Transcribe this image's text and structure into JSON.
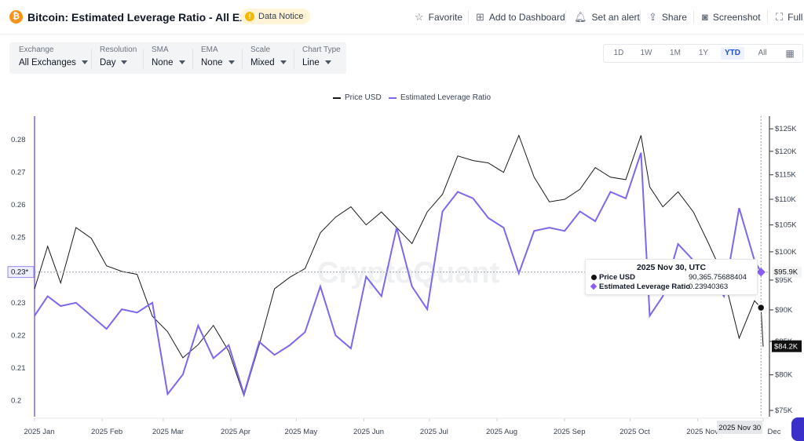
{
  "header": {
    "title": "Bitcoin: Estimated Leverage Ratio - All Exchanges",
    "coin_symbol": "₿",
    "notice_label": "Data Notice",
    "actions": {
      "favorite": "Favorite",
      "dashboard": "Add to Dashboard",
      "alert": "Set an alert",
      "share": "Share",
      "screenshot": "Screenshot",
      "full": "Full"
    }
  },
  "controls": {
    "exchange": {
      "label": "Exchange",
      "value": "All Exchanges"
    },
    "resolution": {
      "label": "Resolution",
      "value": "Day"
    },
    "sma": {
      "label": "SMA",
      "value": "None"
    },
    "ema": {
      "label": "EMA",
      "value": "None"
    },
    "scale": {
      "label": "Scale",
      "value": "Mixed"
    },
    "chart_type": {
      "label": "Chart Type",
      "value": "Line"
    }
  },
  "ranges": [
    "1D",
    "1W",
    "1M",
    "1Y",
    "YTD",
    "All"
  ],
  "active_range": "YTD",
  "legend": {
    "price": "Price USD",
    "ratio": "Estimated Leverage Ratio"
  },
  "tooltip": {
    "date": "2025 Nov 30, UTC",
    "price_label": "Price USD",
    "price_value": "90,365.75688404",
    "ratio_label": "Estimated Leverage Ratio",
    "ratio_value": "0.23940363"
  },
  "crosshair": {
    "left_label": "0.23*",
    "right_label": "$95.9K"
  },
  "last_price_label": "$84.2K",
  "crosshair_date_label": "2025 Nov 30",
  "watermark": "CryptoQuant",
  "colors": {
    "price": "#1a1a1a",
    "ratio": "#7b68ee",
    "accent": "#1d4ed8"
  },
  "chart_data": {
    "type": "line",
    "title": "Bitcoin: Estimated Leverage Ratio - All Exchanges",
    "x_labels": [
      "2025 Jan",
      "2025 Feb",
      "2025 Mar",
      "2025 Apr",
      "2025 May",
      "2025 Jun",
      "2025 Jul",
      "2025 Aug",
      "2025 Sep",
      "2025 Oct",
      "2025 Nov",
      "Dec"
    ],
    "y_left": {
      "ticks": [
        "0.28",
        "0.27",
        "0.26",
        "0.25",
        "0.24",
        "0.23",
        "0.22",
        "0.21",
        "0.2"
      ],
      "range": [
        0.197,
        0.286
      ]
    },
    "y_right": {
      "ticks": [
        "$125K",
        "$120K",
        "$115K",
        "$110K",
        "$105K",
        "$100K",
        "$95K",
        "$90K",
        "$85K",
        "$80K",
        "$75K"
      ],
      "scale": "log",
      "range": [
        75000,
        127000
      ]
    },
    "legend_position": "top-center",
    "grid": false,
    "series": [
      {
        "name": "Price USD",
        "axis": "right",
        "x": [
          "2025-01-01",
          "2025-01-07",
          "2025-01-13",
          "2025-01-20",
          "2025-01-27",
          "2025-02-03",
          "2025-02-10",
          "2025-02-17",
          "2025-02-24",
          "2025-03-03",
          "2025-03-10",
          "2025-03-17",
          "2025-03-24",
          "2025-03-31",
          "2025-04-07",
          "2025-04-14",
          "2025-04-21",
          "2025-04-28",
          "2025-05-05",
          "2025-05-12",
          "2025-05-19",
          "2025-05-26",
          "2025-06-02",
          "2025-06-09",
          "2025-06-16",
          "2025-06-23",
          "2025-06-30",
          "2025-07-07",
          "2025-07-14",
          "2025-07-21",
          "2025-07-28",
          "2025-08-04",
          "2025-08-11",
          "2025-08-18",
          "2025-08-25",
          "2025-09-01",
          "2025-09-08",
          "2025-09-15",
          "2025-09-22",
          "2025-09-29",
          "2025-10-06",
          "2025-10-10",
          "2025-10-16",
          "2025-10-23",
          "2025-10-30",
          "2025-11-06",
          "2025-11-13",
          "2025-11-20",
          "2025-11-27",
          "2025-11-30",
          "2025-12-01"
        ],
        "values": [
          93500,
          101000,
          94500,
          104500,
          102500,
          97500,
          96500,
          96000,
          89000,
          86500,
          82500,
          84500,
          87500,
          83500,
          77000,
          84500,
          93500,
          95500,
          97000,
          103500,
          106500,
          108500,
          105000,
          107500,
          104500,
          101500,
          107500,
          111000,
          119000,
          118000,
          117500,
          115500,
          123500,
          114500,
          109500,
          110000,
          112000,
          116500,
          114500,
          114000,
          123500,
          112500,
          108500,
          111500,
          107500,
          101500,
          95500,
          85500,
          91500,
          90365,
          84200
        ]
      },
      {
        "name": "Estimated Leverage Ratio",
        "axis": "left",
        "x": [
          "2025-01-01",
          "2025-01-07",
          "2025-01-13",
          "2025-01-20",
          "2025-01-27",
          "2025-02-03",
          "2025-02-10",
          "2025-02-17",
          "2025-02-24",
          "2025-03-03",
          "2025-03-10",
          "2025-03-17",
          "2025-03-24",
          "2025-03-31",
          "2025-04-07",
          "2025-04-14",
          "2025-04-21",
          "2025-04-28",
          "2025-05-05",
          "2025-05-12",
          "2025-05-19",
          "2025-05-26",
          "2025-06-02",
          "2025-06-09",
          "2025-06-16",
          "2025-06-23",
          "2025-06-30",
          "2025-07-07",
          "2025-07-14",
          "2025-07-21",
          "2025-07-28",
          "2025-08-04",
          "2025-08-11",
          "2025-08-18",
          "2025-08-25",
          "2025-09-01",
          "2025-09-08",
          "2025-09-15",
          "2025-09-22",
          "2025-09-29",
          "2025-10-06",
          "2025-10-10",
          "2025-10-16",
          "2025-10-23",
          "2025-10-30",
          "2025-11-06",
          "2025-11-13",
          "2025-11-20",
          "2025-11-27",
          "2025-11-30",
          "2025-12-01"
        ],
        "values": [
          0.226,
          0.232,
          0.229,
          0.23,
          0.226,
          0.222,
          0.228,
          0.227,
          0.23,
          0.202,
          0.208,
          0.223,
          0.213,
          0.217,
          0.202,
          0.218,
          0.214,
          0.217,
          0.221,
          0.235,
          0.22,
          0.216,
          0.238,
          0.232,
          0.253,
          0.235,
          0.228,
          0.258,
          0.264,
          0.262,
          0.256,
          0.253,
          0.239,
          0.252,
          0.253,
          0.252,
          0.258,
          0.255,
          0.264,
          0.262,
          0.276,
          0.226,
          0.232,
          0.248,
          0.243,
          0.239,
          0.232,
          0.259,
          0.243,
          0.2394,
          0.24
        ]
      }
    ]
  }
}
